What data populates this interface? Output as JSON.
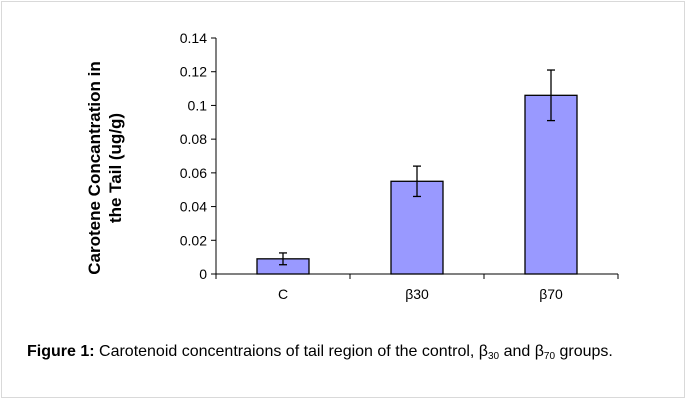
{
  "chart_data": {
    "type": "bar",
    "categories": [
      "C",
      "β30",
      "β70"
    ],
    "values": [
      0.009,
      0.055,
      0.106
    ],
    "error": [
      0.0035,
      0.009,
      0.015
    ],
    "ylabel_lines": [
      "Carotene Concantration in",
      "the Tail  (ug/g)"
    ],
    "xlabel": "",
    "ylim": [
      0,
      0.14
    ],
    "yticks": [
      0,
      0.02,
      0.04,
      0.06,
      0.08,
      0.1,
      0.12,
      0.14
    ],
    "ytick_labels": [
      "0",
      "0.02",
      "0.04",
      "0.06",
      "0.08",
      "0.1",
      "0.12",
      "0.14"
    ],
    "grid": false,
    "legend": "none",
    "bar_color": "#9999ff",
    "bar_edge_color": "#000000"
  },
  "caption": {
    "label": "Figure 1:",
    "text_before": " Carotenoid concentraions of tail region of the control, β",
    "sub1": "30",
    "text_middle": " and β",
    "sub2": "70",
    "text_after": " groups."
  }
}
